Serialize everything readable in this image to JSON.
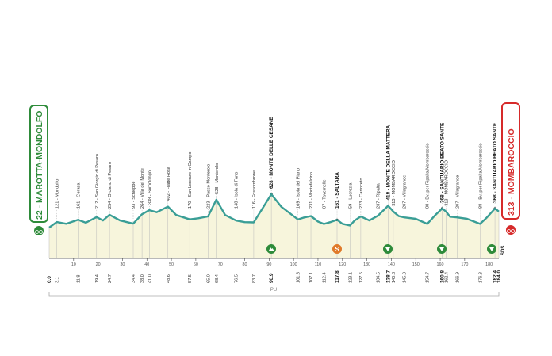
{
  "chart_data": {
    "type": "area",
    "start_label": "22 - MAROTTA-MONDOLFO",
    "finish_label": "313 - MOMBAROCCIO",
    "section_label": "PU",
    "sds_label": "SDS",
    "sprint_symbol": "S",
    "color": "#3a9e96",
    "fill": "#f7f5dc",
    "xlim": [
      0,
      184
    ],
    "xticks": [
      10,
      20,
      30,
      40,
      50,
      60,
      70,
      80,
      90,
      100,
      110,
      120,
      130,
      140,
      150,
      160,
      170,
      180
    ],
    "x": [
      0,
      3.1,
      7,
      11.8,
      15,
      19.4,
      22,
      24.7,
      29,
      34.4,
      38,
      41,
      44,
      48.6,
      52,
      57.5,
      61,
      65,
      68.4,
      72,
      76.5,
      80,
      83.7,
      87,
      90.9,
      95,
      101.8,
      104,
      107.1,
      110,
      112.4,
      115,
      117.8,
      120,
      123.1,
      125,
      127.5,
      131,
      134.5,
      138.7,
      140.8,
      143,
      145.3,
      150,
      154.7,
      158,
      160.8,
      162.4,
      164,
      166.9,
      171,
      176.3,
      179,
      182.4,
      184
    ],
    "values": [
      22,
      121,
      90,
      161,
      110,
      212,
      150,
      254,
      150,
      93,
      264,
      338,
      300,
      402,
      250,
      170,
      190,
      223,
      528,
      250,
      148,
      120,
      116,
      350,
      628,
      400,
      169,
      200,
      231,
      130,
      87,
      120,
      161,
      90,
      59,
      150,
      223,
      150,
      237,
      418,
      313,
      230,
      207,
      180,
      88,
      250,
      368,
      313,
      220,
      207,
      180,
      88,
      200,
      368,
      313
    ],
    "places": [
      {
        "km": {
          "value": 0,
          "label": "0.0"
        },
        "bold": true
      },
      {
        "km": 3.1,
        "label": "121 - Mondolfo",
        "bold": false
      },
      {
        "km": 11.8,
        "label": "161 - Cerasa",
        "bold": false
      },
      {
        "km": 19.4,
        "label": "212 - San Giorgio di Pesaro",
        "bold": false
      },
      {
        "km": 24.7,
        "label": "254 - Orciano di Pesaro",
        "bold": false
      },
      {
        "km": 34.4,
        "label": "93 - Schieppe",
        "bold": false
      },
      {
        "km": {
          "value": 38,
          "label": "38.0"
        },
        "label": "264 - Villa del Monte",
        "bold": false
      },
      {
        "km": {
          "value": 41,
          "label": "41.0"
        },
        "label": "338 - Sorbolongo",
        "bold": false
      },
      {
        "km": 48.6,
        "label": "402 - Fratte Rosa",
        "bold": false
      },
      {
        "km": 57.5,
        "label": "170 - San Lorenzo in Campo",
        "bold": false
      },
      {
        "km": {
          "value": 65,
          "label": "65.0"
        },
        "label": "223 - Passo Monterolo",
        "bold": false
      },
      {
        "km": 68.4,
        "label": "528 - Monterolo",
        "bold": false
      },
      {
        "km": 76.5,
        "label": "148 - Isola di Fano",
        "bold": false
      },
      {
        "km": 83.7,
        "label": "116 - Fossombrone",
        "bold": false
      },
      {
        "km": 90.9,
        "label": "628 - MONTE DELLE CESANE",
        "bold": true
      },
      {
        "km": 101.8,
        "label": "169 - Isola del Piano",
        "bold": false
      },
      {
        "km": 107.1,
        "label": "231 - Montefelcino",
        "bold": false
      },
      {
        "km": 112.4,
        "label": "87 - Tavernelle",
        "bold": false
      },
      {
        "km": 117.8,
        "label": "161 - SALTARA",
        "bold": true
      },
      {
        "km": 123.1,
        "label": "59 - Lucrezia",
        "bold": false
      },
      {
        "km": 127.5,
        "label": "223 - Cartoceto",
        "bold": false
      },
      {
        "km": 134.5,
        "label": "237 - Ripalta",
        "bold": false
      },
      {
        "km": 138.7,
        "label": "418 - MONTE DELLA MATTERA",
        "bold": true
      },
      {
        "km": 140.8,
        "label": "313 - MOMBAROCCIO",
        "bold": false
      },
      {
        "km": 145.3,
        "label": "207 - Villagrande",
        "bold": false
      },
      {
        "km": 154.7,
        "label": "88 - Bv. per Ripalta/Mombaroccio",
        "bold": false
      },
      {
        "km": 160.8,
        "label": "368 - SANTUARIO BEATO SANTE",
        "bold": true
      },
      {
        "km": 162.4,
        "label": "313 - MOMBAROCCIO",
        "bold": false
      },
      {
        "km": 166.9,
        "label": "207 - Villagrande",
        "bold": false
      },
      {
        "km": 176.3,
        "label": "88 - Bv. per Ripalta/Mombaroccio",
        "bold": false
      },
      {
        "km": 182.4,
        "label": "368 - SANTUARIO BEATO SANTE",
        "bold": true
      },
      {
        "km": {
          "value": 184,
          "label": "184.0"
        },
        "bold": true
      }
    ]
  }
}
